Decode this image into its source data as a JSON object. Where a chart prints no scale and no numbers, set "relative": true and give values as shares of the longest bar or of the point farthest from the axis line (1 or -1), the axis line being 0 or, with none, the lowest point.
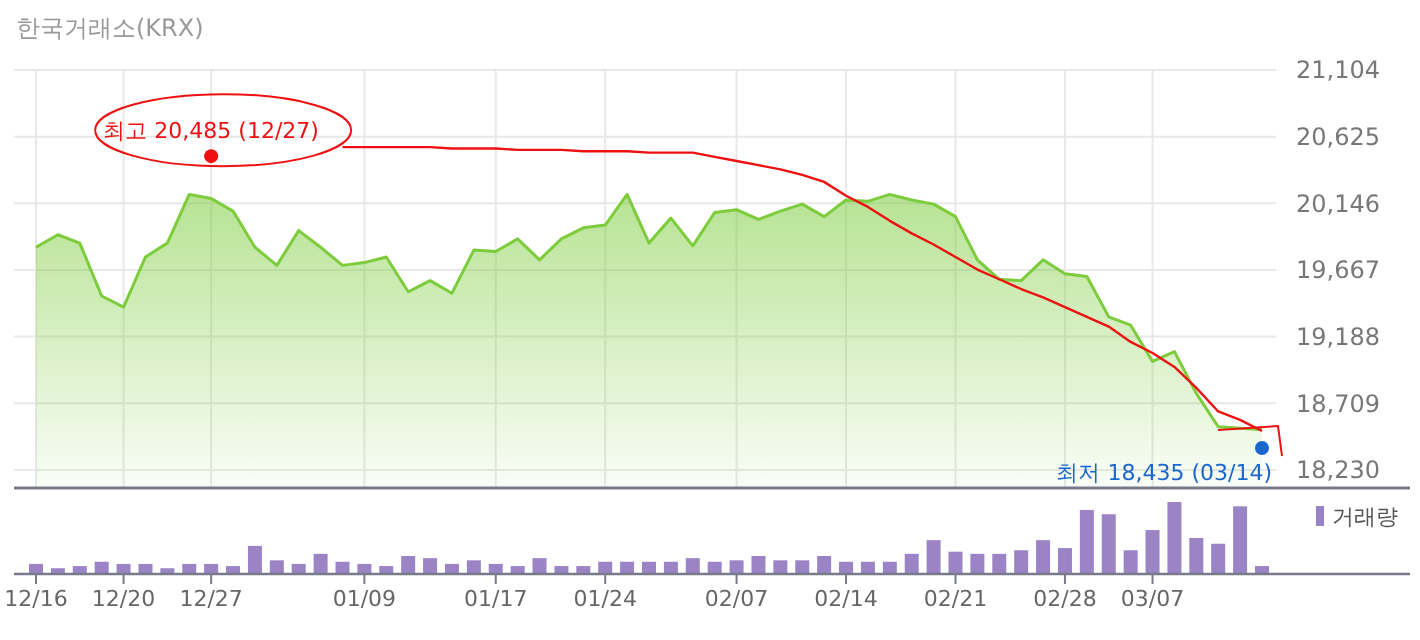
{
  "chart_data": [
    {
      "type": "area",
      "title": "한국거래소(KRX)",
      "categories": [
        "12/16",
        null,
        null,
        null,
        "12/20",
        null,
        null,
        null,
        "12/27",
        null,
        null,
        null,
        null,
        null,
        null,
        "01/09",
        null,
        null,
        null,
        null,
        null,
        "01/17",
        null,
        null,
        null,
        null,
        "01/24",
        null,
        null,
        null,
        null,
        null,
        "02/07",
        null,
        null,
        null,
        null,
        "02/14",
        null,
        null,
        null,
        null,
        "02/21",
        null,
        null,
        null,
        null,
        "02/28",
        null,
        null,
        null,
        "03/07",
        null,
        null,
        null,
        null,
        null
      ],
      "series": [
        {
          "color": "#7ccc3c",
          "values": [
            19830,
            19920,
            19860,
            19480,
            19400,
            19760,
            19860,
            20210,
            20180,
            20090,
            19830,
            19700,
            19950,
            19830,
            19700,
            19720,
            19760,
            19510,
            19590,
            19500,
            19810,
            19800,
            19890,
            19740,
            19890,
            19970,
            19990,
            20210,
            19860,
            20040,
            19840,
            20080,
            20100,
            20030,
            20090,
            20140,
            20050,
            20170,
            20160,
            20210,
            20170,
            20140,
            20050,
            19740,
            19600,
            19590,
            19740,
            19640,
            19620,
            19330,
            19270,
            19010,
            19080,
            18780,
            18540,
            18530,
            18520
          ]
        },
        {
          "type": "line",
          "color": "#ee1111",
          "values": [
            null,
            null,
            null,
            null,
            null,
            null,
            null,
            null,
            null,
            null,
            null,
            null,
            null,
            null,
            20550,
            20550,
            20550,
            20550,
            20550,
            20540,
            20540,
            20540,
            20530,
            20530,
            20530,
            20520,
            20520,
            20520,
            20510,
            20510,
            20510,
            20480,
            20450,
            20420,
            20390,
            20350,
            20300,
            20200,
            20120,
            20020,
            19930,
            19850,
            19760,
            19670,
            19600,
            19530,
            19470,
            19400,
            19330,
            19260,
            19150,
            19070,
            18970,
            18820,
            18650,
            18590,
            18510
          ]
        }
      ],
      "ylim": [
        18100,
        21104
      ],
      "yticks": [
        {
          "value": 18230,
          "label": "18,230"
        },
        {
          "value": 18709,
          "label": "18,709"
        },
        {
          "value": 19188,
          "label": "19,188"
        },
        {
          "value": 19667,
          "label": "19,667"
        },
        {
          "value": 20146,
          "label": "20,146"
        },
        {
          "value": 20625,
          "label": "20,625"
        },
        {
          "value": 21104,
          "label": "21,104"
        }
      ],
      "grid": true,
      "tick_labels": "y",
      "annotations": [
        {
          "text": "최고 20,485 (12/27)",
          "x": "12/27",
          "y": 20485
        },
        "최저 18,435 (03/14)"
      ]
    },
    {
      "type": "bar",
      "categories": [
        "12/16",
        null,
        null,
        null,
        "12/20",
        null,
        null,
        null,
        "12/27",
        null,
        null,
        null,
        null,
        null,
        null,
        "01/09",
        null,
        null,
        null,
        null,
        null,
        "01/17",
        null,
        null,
        null,
        null,
        "01/24",
        null,
        null,
        null,
        null,
        null,
        "02/07",
        null,
        null,
        null,
        null,
        "02/14",
        null,
        null,
        null,
        null,
        "02/21",
        null,
        null,
        null,
        null,
        "02/28",
        null,
        null,
        null,
        "03/07",
        null,
        null,
        null,
        null,
        null
      ],
      "series": [
        {
          "name": "거래량",
          "color": "#9b84c6",
          "values": [
            0.14,
            0.08,
            0.11,
            0.17,
            0.14,
            0.14,
            0.08,
            0.14,
            0.14,
            0.11,
            0.39,
            0.19,
            0.14,
            0.28,
            0.17,
            0.14,
            0.11,
            0.25,
            0.22,
            0.14,
            0.19,
            0.14,
            0.11,
            0.22,
            0.11,
            0.11,
            0.17,
            0.17,
            0.17,
            0.17,
            0.22,
            0.17,
            0.19,
            0.25,
            0.19,
            0.19,
            0.25,
            0.17,
            0.17,
            0.17,
            0.28,
            0.47,
            0.31,
            0.28,
            0.28,
            0.33,
            0.47,
            0.36,
            0.89,
            0.83,
            0.33,
            0.61,
            1,
            0.5,
            0.42,
            0.94,
            0.11
          ]
        }
      ],
      "relative": true,
      "legend": "right",
      "tick_labels": "x"
    }
  ]
}
